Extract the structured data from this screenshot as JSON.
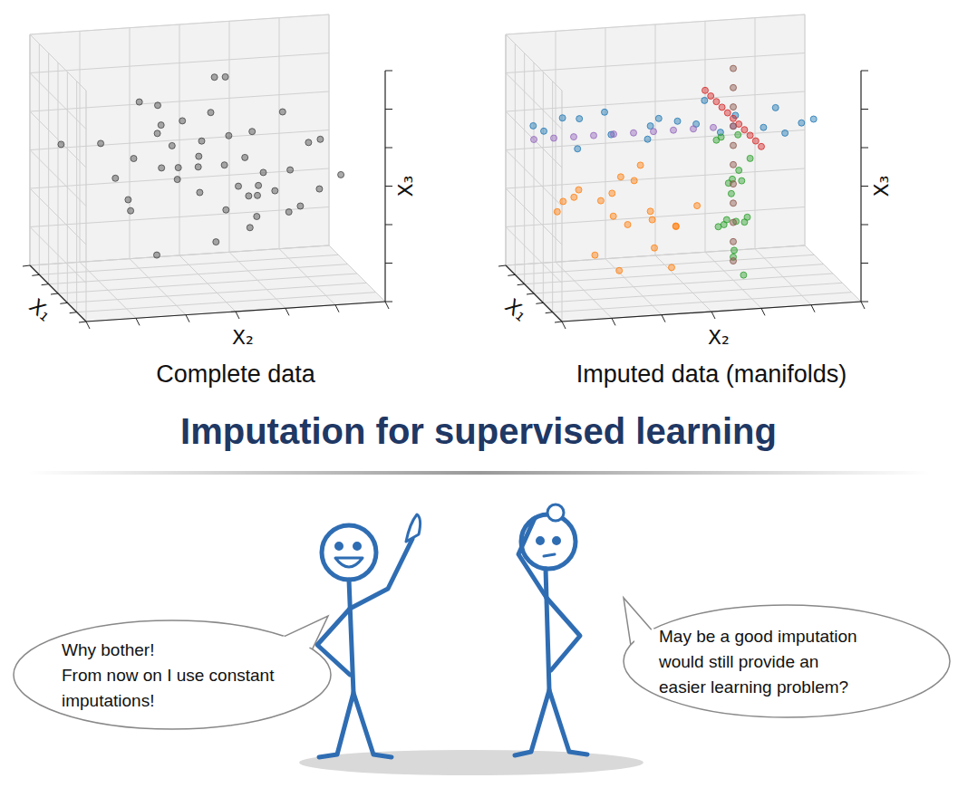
{
  "slide_title": "Imputation for supervised learning",
  "chart_data": [
    {
      "type": "scatter3d",
      "title": "Complete data",
      "xlabel": "X₁",
      "ylabel": "X₂",
      "zlabel": "X₃",
      "xlim": [
        -3,
        3
      ],
      "ylim": [
        -3,
        3
      ],
      "zlim": [
        -3,
        3
      ],
      "xticks": [
        -3,
        -2,
        -1,
        0,
        1,
        2,
        3
      ],
      "yticks": [
        -3,
        -2,
        -1,
        0,
        1,
        2,
        3
      ],
      "zticks": [
        -3,
        -2,
        -1,
        0,
        1,
        2,
        3
      ],
      "grid": true,
      "tick_labels": false,
      "series": [
        {
          "color": "#444444",
          "x": [
            0.2,
            -1.1,
            0.8,
            1.5,
            -0.4,
            0.1,
            -2.0,
            1.2,
            0.5,
            -0.7,
            2.1,
            -1.5,
            0.3,
            0.9,
            -0.2,
            1.7,
            -0.9,
            0.0,
            0.6,
            -1.3,
            1.1,
            -0.5,
            2.4,
            -2.3,
            0.4,
            -0.1,
            1.4,
            -0.8,
            0.7,
            -1.8,
            0.2,
            1.0,
            -0.6,
            -0.3,
            1.9,
            0.5,
            -1.0,
            0.3,
            -0.4,
            1.3,
            -1.6,
            0.8,
            -0.2,
            0.1,
            2.0
          ],
          "y": [
            0.3,
            -0.8,
            1.2,
            -0.4,
            0.9,
            -1.5,
            0.2,
            1.8,
            -0.6,
            0.5,
            -1.0,
            1.4,
            -2.2,
            0.0,
            2.3,
            0.7,
            -1.2,
            1.0,
            -0.3,
            0.6,
            -1.8,
            1.6,
            0.4,
            -0.5,
            2.6,
            -1.0,
            -0.2,
            0.9,
            1.5,
            -2.6,
            0.1,
            -0.9,
            1.1,
            -0.1,
            1.3,
            0.8,
            -0.4,
            -1.6,
            0.5,
            2.0,
            -0.7,
            -2.0,
            1.9,
            0.6,
            -1.3
          ],
          "z": [
            0.1,
            0.7,
            -0.5,
            1.1,
            -0.9,
            0.4,
            -0.2,
            0.8,
            1.4,
            -1.3,
            0.3,
            -0.6,
            0.9,
            -1.7,
            0.5,
            -0.1,
            1.6,
            -0.8,
            0.2,
            2.0,
            -0.4,
            1.2,
            -1.0,
            0.6,
            -0.3,
            -2.2,
            1.8,
            0.0,
            -1.1,
            0.4,
            2.4,
            0.9,
            -1.5,
            -0.7,
            0.3,
            1.0,
            -0.2,
            -0.9,
            0.7,
            -0.4,
            1.3,
            0.1,
            -1.2,
            -0.5,
            0.6
          ]
        }
      ]
    },
    {
      "type": "scatter3d",
      "title": "Imputed data (manifolds)",
      "xlabel": "X₁",
      "ylabel": "X₂",
      "zlabel": "X₃",
      "xlim": [
        -3,
        3
      ],
      "ylim": [
        -3,
        3
      ],
      "zlim": [
        -3,
        3
      ],
      "xticks": [
        -3,
        -2,
        -1,
        0,
        1,
        2,
        3
      ],
      "yticks": [
        -3,
        -2,
        -1,
        0,
        1,
        2,
        3
      ],
      "zticks": [
        -3,
        -2,
        -1,
        0,
        1,
        2,
        3
      ],
      "grid": true,
      "tick_labels": false,
      "series": [
        {
          "color": "#ff7f0e",
          "x": [
            0.5,
            -1.0,
            1.2,
            -0.3,
            0.8,
            -1.6,
            0.1,
            1.8,
            -0.7,
            0.4,
            -1.2,
            0.9,
            -0.1,
            1.4,
            -0.5,
            0.2,
            -1.9,
            1.0,
            -0.8,
            0.6
          ],
          "y": [
            -1.5,
            -0.8,
            -2.0,
            -1.2,
            -0.3,
            -1.8,
            -0.6,
            -1.0,
            -2.4,
            0.2,
            -0.4,
            -1.6,
            -1.1,
            -0.5,
            -2.1,
            -0.9,
            -1.3,
            -2.6,
            0.0,
            -1.4
          ],
          "z": [
            -1.0,
            -0.5,
            -1.8,
            -0.2,
            -1.3,
            -0.8,
            -2.0,
            -0.6,
            -1.1,
            -0.9,
            -1.6,
            -0.3,
            -1.4,
            -2.2,
            -0.7,
            0.2,
            -1.2,
            -0.4,
            -1.7,
            -2.4
          ]
        },
        {
          "color": "#1f77b4",
          "x": [
            0.0,
            -1.2,
            0.8,
            1.5,
            -0.5,
            0.3,
            -2.0,
            1.1,
            -0.8,
            0.6,
            2.0,
            -1.5,
            0.2,
            -0.3,
            1.3,
            -1.0,
            0.9,
            -0.1,
            1.8,
            -0.6
          ],
          "y": [
            -2.8,
            -2.2,
            -1.6,
            -1.0,
            -0.4,
            0.2,
            0.8,
            1.4,
            2.0,
            2.5,
            -2.5,
            -1.3,
            -0.7,
            1.1,
            0.5,
            -1.9,
            2.2,
            -0.1,
            1.7,
            -2.9
          ],
          "z": [
            1.2,
            1.2,
            1.2,
            1.2,
            1.2,
            1.2,
            1.2,
            1.2,
            1.2,
            1.2,
            1.2,
            1.2,
            1.2,
            1.2,
            1.2,
            1.2,
            1.2,
            1.2,
            1.2,
            1.2
          ]
        },
        {
          "color": "#2ca02c",
          "x": [
            0.0,
            -1.0,
            1.2,
            -0.5,
            0.6,
            1.8,
            -1.6,
            0.3,
            -0.2,
            0.9,
            -1.3,
            1.5,
            0.1,
            -0.7,
            0.5,
            -0.1,
            1.1,
            -1.8
          ],
          "y": [
            1.0,
            1.0,
            1.0,
            1.0,
            1.0,
            1.0,
            1.0,
            1.0,
            1.0,
            1.0,
            1.0,
            1.0,
            1.0,
            1.0,
            1.0,
            1.0,
            1.0,
            1.0
          ],
          "z": [
            -2.4,
            -1.8,
            -1.2,
            -0.6,
            0.0,
            0.6,
            -2.0,
            -1.4,
            -0.8,
            -0.2,
            0.4,
            -1.0,
            -2.2,
            -1.6,
            0.9,
            -0.4,
            -2.6,
            0.2
          ]
        },
        {
          "color": "#9467bd",
          "x": [
            0.0,
            0.0,
            0.0,
            0.0,
            0.0,
            0.0,
            0.0,
            0.0,
            0.0,
            0.0,
            0.0
          ],
          "y": [
            -3.0,
            -2.6,
            -2.2,
            -1.8,
            -1.4,
            -1.0,
            -0.6,
            -0.2,
            0.2,
            0.6,
            1.0
          ],
          "z": [
            1.0,
            1.0,
            1.0,
            1.0,
            1.0,
            1.0,
            1.0,
            1.0,
            1.0,
            1.0,
            1.0
          ]
        },
        {
          "color": "#d62728",
          "x": [
            -3.0,
            -2.4,
            -1.8,
            -1.2,
            -0.6,
            0.0,
            0.6,
            1.2,
            1.8,
            2.4,
            3.0
          ],
          "y": [
            1.0,
            1.0,
            1.0,
            1.0,
            1.0,
            1.0,
            1.0,
            1.0,
            1.0,
            1.0,
            1.0
          ],
          "z": [
            1.2,
            1.2,
            1.2,
            1.2,
            1.2,
            1.2,
            1.2,
            1.2,
            1.2,
            1.2,
            1.2
          ]
        },
        {
          "color": "#8c564b",
          "x": [
            0.0,
            0.0,
            0.0,
            0.0,
            0.0,
            0.0,
            0.0,
            0.0,
            0.0,
            0.0,
            0.0
          ],
          "y": [
            1.0,
            1.0,
            1.0,
            1.0,
            1.0,
            1.0,
            1.0,
            1.0,
            1.0,
            1.0,
            1.0
          ],
          "z": [
            -2.5,
            -2.0,
            -1.5,
            -1.0,
            -0.5,
            0.0,
            0.5,
            1.0,
            1.5,
            2.0,
            2.5
          ]
        }
      ]
    }
  ],
  "speech": [
    {
      "lines": [
        "Why bother!",
        "From now on I use constant",
        "imputations!"
      ]
    },
    {
      "lines": [
        "May be a good imputation",
        "would still provide an",
        "easier learning problem?"
      ]
    }
  ]
}
